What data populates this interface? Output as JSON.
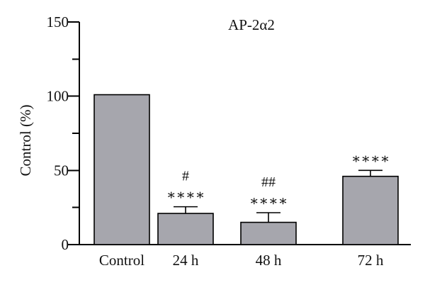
{
  "chart_data": {
    "type": "bar",
    "title": "AP-2α2",
    "xlabel": "",
    "ylabel": "Control (%)",
    "ylim": [
      0,
      150
    ],
    "yticks": [
      0,
      50,
      100,
      150
    ],
    "categories": [
      "Control",
      "24 h",
      "48 h",
      "72 h"
    ],
    "values": [
      101,
      21,
      15,
      46
    ],
    "errors": [
      0,
      4.5,
      6.5,
      4
    ],
    "annotations": [
      [
        "",
        ""
      ],
      [
        "#",
        "∗∗∗∗"
      ],
      [
        "##",
        "∗∗∗∗"
      ],
      [
        "",
        "∗∗∗∗"
      ]
    ],
    "grid": false,
    "legend": "none",
    "colors": {
      "bar": "#a6a6ad",
      "axis": "#000000"
    }
  }
}
